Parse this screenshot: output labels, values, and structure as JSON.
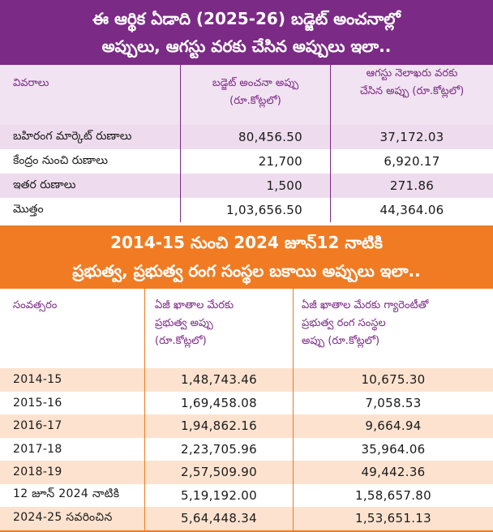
{
  "section1": {
    "title_line1": "ఈ ఆర్థిక ఏడాది (2025-26) బడ్జెట్ అంచనాల్లో",
    "title_line2": "అప్పులు, ఆగస్టు వరకు చేసిన అప్పులు ఇలా..",
    "header": {
      "col1": "వివరాలు",
      "col2_line1": "బడ్జెట్ అంచనా అప్పు",
      "col2_line2": "(రూ.కోట్లలో)",
      "col3_line1": "ఆగస్టు నెలాఖరు వరకు",
      "col3_line2": "చేసిన అప్పు (రూ.కోట్లలో)"
    },
    "rows": [
      {
        "label": "బహిరంగ మార్కెట్ రుణాలు",
        "budget": "80,456.50",
        "actual": "37,172.03"
      },
      {
        "label": "కేంద్రం నుంచి రుణాలు",
        "budget": "21,700",
        "actual": "6,920.17"
      },
      {
        "label": "ఇతర రుణాలు",
        "budget": "1,500",
        "actual": "271.86"
      },
      {
        "label": "మొత్తం",
        "budget": "1,03,656.50",
        "actual": "44,364.06"
      }
    ]
  },
  "section2": {
    "title_line1": "2014-15 నుంచి 2024 జూన్12 నాటికి",
    "title_line2": "ప్రభుత్వ, ప్రభుత్వ రంగ సంస్థల బకాయి అప్పులు ఇలా..",
    "header": {
      "col1": "సంవత్సరం",
      "col2_line1": "ఏజీ ఖాతాల మేరకు",
      "col2_line2": "ప్రభుత్వ అప్పు",
      "col2_line3": "(రూ.కోట్లలో)",
      "col3_line1": "ఏజీ ఖాతాల మేరకు గ్యారెంటీతో",
      "col3_line2": "ప్రభుత్వ రంగ సంస్థల",
      "col3_line3": "అప్పు (రూ.కోట్లలో)"
    },
    "rows": [
      {
        "year": "2014-15",
        "govt": "1,48,743.46",
        "psu": "10,675.30"
      },
      {
        "year": "2015-16",
        "govt": "1,69,458.08",
        "psu": "7,058.53"
      },
      {
        "year": "2016-17",
        "govt": "1,94,862.16",
        "psu": "9,664.94"
      },
      {
        "year": "2017-18",
        "govt": "2,23,705.96",
        "psu": "35,964.06"
      },
      {
        "year": "2018-19",
        "govt": "2,57,509.90",
        "psu": "49,442.36"
      },
      {
        "year": "12 జూన్ 2024 నాటికి",
        "govt": "5,19,192.00",
        "psu": "1,58,657.80"
      },
      {
        "year": "2024-25 సవరించిన",
        "govt": "5,64,448.34",
        "psu": "1,53,651.13"
      }
    ]
  },
  "colors": {
    "purple": "#7b2a86",
    "purple_light": "#eedcee",
    "orange": "#f07b22",
    "orange_light": "#fde3cf"
  }
}
